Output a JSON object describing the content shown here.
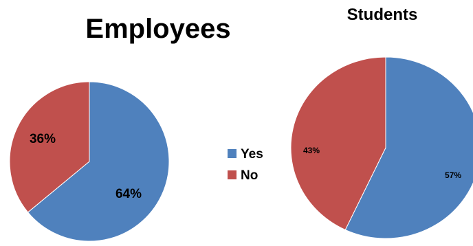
{
  "chart_data": [
    {
      "type": "pie",
      "title": "Employees",
      "legend": "center-between-charts",
      "slices": [
        {
          "label": "Yes",
          "value": 64,
          "display": "64%",
          "color": "#4f81bd"
        },
        {
          "label": "No",
          "value": 36,
          "display": "36%",
          "color": "#c0504d"
        }
      ]
    },
    {
      "type": "pie",
      "title": "Students",
      "slices": [
        {
          "label": "Yes",
          "value": 57,
          "display": "57%",
          "color": "#4f81bd"
        },
        {
          "label": "No",
          "value": 43,
          "display": "43%",
          "color": "#c0504d"
        }
      ]
    }
  ],
  "legend": {
    "items": [
      {
        "label": "Yes",
        "color": "#4f81bd"
      },
      {
        "label": "No",
        "color": "#c0504d"
      }
    ]
  }
}
